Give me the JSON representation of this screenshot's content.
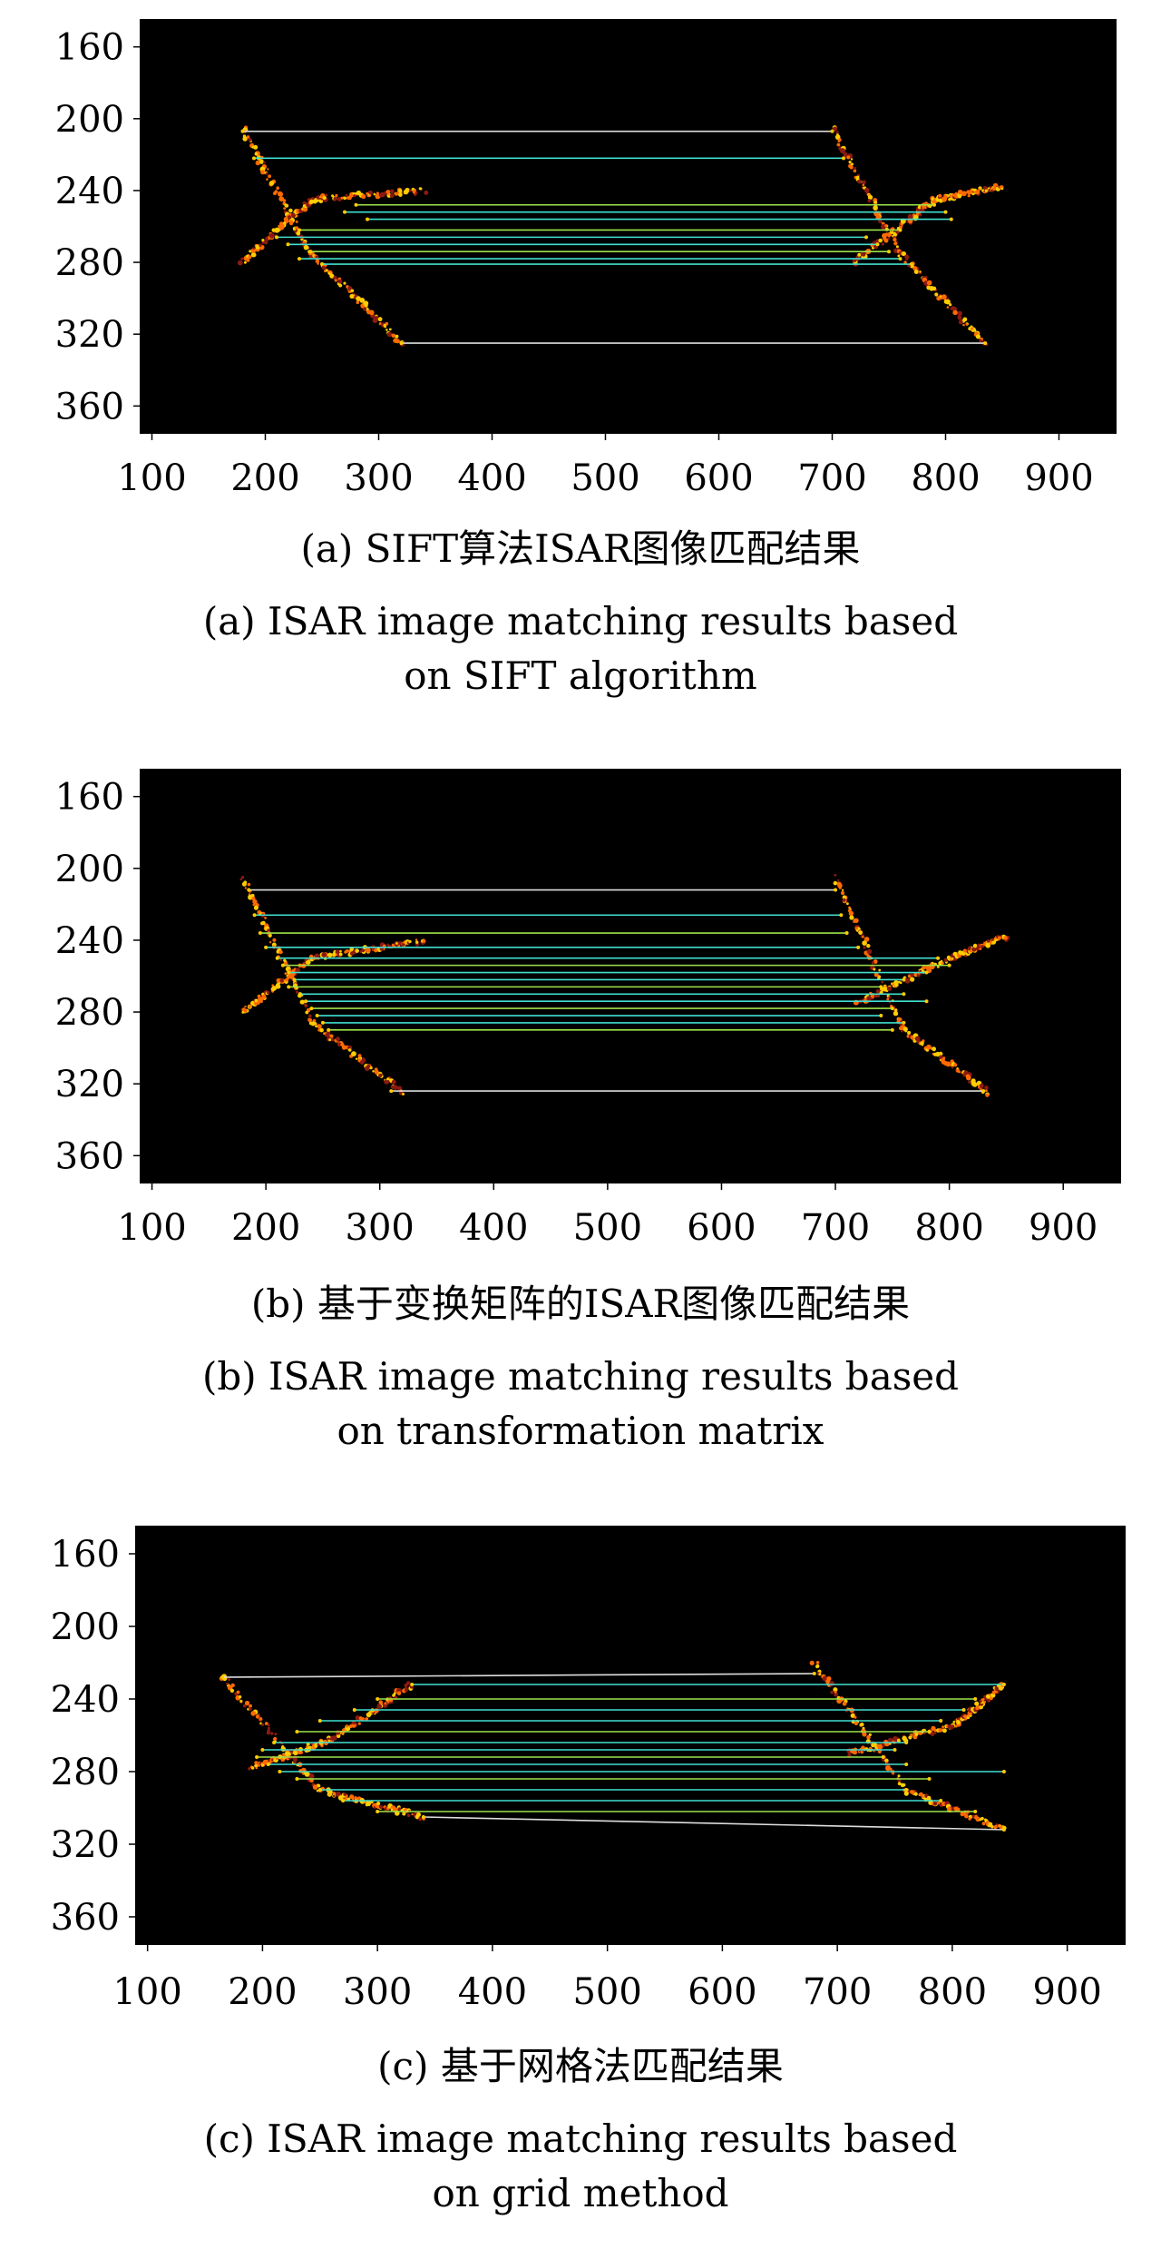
{
  "figures": [
    {
      "caption_cn": "(a) SIFT算法ISAR图像匹配结果",
      "caption_en_1": "(a) ISAR image matching results based",
      "caption_en_2": "on SIFT algorithm"
    },
    {
      "caption_cn": "(b) 基于变换矩阵的ISAR图像匹配结果",
      "caption_en_1": "(b) ISAR image matching results based",
      "caption_en_2": "on transformation matrix"
    },
    {
      "caption_cn": "(c) 基于网格法匹配结果",
      "caption_en_1": "(c) ISAR image matching results based",
      "caption_en_2": "on grid method"
    }
  ],
  "colors": {
    "background": "#000000",
    "scatter_hot": "#ffcc00",
    "scatter_warm": "#ff6a00",
    "scatter_dark": "#8b1a10",
    "match_line_cyan": "#40e0d0",
    "match_line_white": "#dddddd",
    "match_line_green": "#9ee34a"
  },
  "chart_data": [
    {
      "type": "scatter",
      "x_ticks": [
        "100",
        "200",
        "300",
        "400",
        "500",
        "600",
        "700",
        "800",
        "900"
      ],
      "y_ticks": [
        "160",
        "200",
        "240",
        "280",
        "320",
        "360"
      ],
      "xlim": [
        90,
        950
      ],
      "ylim": [
        145,
        375
      ],
      "y_reversed": true,
      "scatterers": [
        {
          "from": [
            180,
            205
          ],
          "to": [
            240,
            275
          ]
        },
        {
          "from": [
            240,
            275
          ],
          "to": [
            320,
            325
          ]
        },
        {
          "from": [
            180,
            280
          ],
          "to": [
            240,
            245
          ]
        },
        {
          "from": [
            240,
            245
          ],
          "to": [
            340,
            240
          ]
        },
        {
          "from": [
            700,
            205
          ],
          "to": [
            760,
            275
          ]
        },
        {
          "from": [
            760,
            275
          ],
          "to": [
            835,
            325
          ]
        },
        {
          "from": [
            720,
            280
          ],
          "to": [
            790,
            245
          ]
        },
        {
          "from": [
            790,
            245
          ],
          "to": [
            850,
            238
          ]
        }
      ],
      "matches": [
        {
          "x1": 180,
          "y1": 207,
          "x2": 700,
          "y2": 207
        },
        {
          "x1": 190,
          "y1": 222,
          "x2": 710,
          "y2": 222
        },
        {
          "x1": 280,
          "y1": 248,
          "x2": 790,
          "y2": 248
        },
        {
          "x1": 270,
          "y1": 252,
          "x2": 800,
          "y2": 252
        },
        {
          "x1": 290,
          "y1": 256,
          "x2": 805,
          "y2": 256
        },
        {
          "x1": 230,
          "y1": 262,
          "x2": 760,
          "y2": 262
        },
        {
          "x1": 210,
          "y1": 266,
          "x2": 730,
          "y2": 266
        },
        {
          "x1": 220,
          "y1": 270,
          "x2": 740,
          "y2": 270
        },
        {
          "x1": 240,
          "y1": 274,
          "x2": 750,
          "y2": 274
        },
        {
          "x1": 230,
          "y1": 278,
          "x2": 760,
          "y2": 278
        },
        {
          "x1": 250,
          "y1": 281,
          "x2": 770,
          "y2": 281
        },
        {
          "x1": 320,
          "y1": 325,
          "x2": 835,
          "y2": 325
        }
      ]
    },
    {
      "type": "scatter",
      "x_ticks": [
        "100",
        "200",
        "300",
        "400",
        "500",
        "600",
        "700",
        "800",
        "900"
      ],
      "y_ticks": [
        "160",
        "200",
        "240",
        "280",
        "320",
        "360"
      ],
      "xlim": [
        90,
        950
      ],
      "ylim": [
        145,
        375
      ],
      "y_reversed": true,
      "scatterers": [
        {
          "from": [
            180,
            205
          ],
          "to": [
            240,
            285
          ]
        },
        {
          "from": [
            240,
            285
          ],
          "to": [
            320,
            325
          ]
        },
        {
          "from": [
            180,
            280
          ],
          "to": [
            240,
            250
          ]
        },
        {
          "from": [
            240,
            250
          ],
          "to": [
            340,
            240
          ]
        },
        {
          "from": [
            700,
            205
          ],
          "to": [
            760,
            290
          ]
        },
        {
          "from": [
            760,
            290
          ],
          "to": [
            835,
            325
          ]
        },
        {
          "from": [
            720,
            275
          ],
          "to": [
            800,
            250
          ]
        },
        {
          "from": [
            800,
            250
          ],
          "to": [
            850,
            238
          ]
        }
      ],
      "matches": [
        {
          "x1": 185,
          "y1": 212,
          "x2": 700,
          "y2": 212
        },
        {
          "x1": 190,
          "y1": 226,
          "x2": 705,
          "y2": 226
        },
        {
          "x1": 195,
          "y1": 236,
          "x2": 710,
          "y2": 236
        },
        {
          "x1": 200,
          "y1": 244,
          "x2": 720,
          "y2": 244
        },
        {
          "x1": 210,
          "y1": 250,
          "x2": 790,
          "y2": 250
        },
        {
          "x1": 215,
          "y1": 254,
          "x2": 800,
          "y2": 254
        },
        {
          "x1": 220,
          "y1": 258,
          "x2": 780,
          "y2": 258
        },
        {
          "x1": 225,
          "y1": 262,
          "x2": 760,
          "y2": 262
        },
        {
          "x1": 220,
          "y1": 266,
          "x2": 740,
          "y2": 266
        },
        {
          "x1": 230,
          "y1": 270,
          "x2": 760,
          "y2": 270
        },
        {
          "x1": 235,
          "y1": 274,
          "x2": 780,
          "y2": 274
        },
        {
          "x1": 240,
          "y1": 278,
          "x2": 750,
          "y2": 278
        },
        {
          "x1": 245,
          "y1": 282,
          "x2": 740,
          "y2": 282
        },
        {
          "x1": 250,
          "y1": 286,
          "x2": 760,
          "y2": 286
        },
        {
          "x1": 255,
          "y1": 290,
          "x2": 750,
          "y2": 290
        },
        {
          "x1": 310,
          "y1": 324,
          "x2": 830,
          "y2": 324
        }
      ]
    },
    {
      "type": "scatter",
      "x_ticks": [
        "100",
        "200",
        "300",
        "400",
        "500",
        "600",
        "700",
        "800",
        "900"
      ],
      "y_ticks": [
        "160",
        "200",
        "240",
        "280",
        "320",
        "360"
      ],
      "xlim": [
        90,
        950
      ],
      "ylim": [
        145,
        375
      ],
      "y_reversed": true,
      "scatterers": [
        {
          "from": [
            165,
            228
          ],
          "to": [
            250,
            290
          ]
        },
        {
          "from": [
            250,
            290
          ],
          "to": [
            340,
            305
          ]
        },
        {
          "from": [
            190,
            278
          ],
          "to": [
            260,
            262
          ]
        },
        {
          "from": [
            260,
            262
          ],
          "to": [
            330,
            232
          ]
        },
        {
          "from": [
            680,
            220
          ],
          "to": [
            760,
            290
          ]
        },
        {
          "from": [
            760,
            290
          ],
          "to": [
            845,
            312
          ]
        },
        {
          "from": [
            710,
            270
          ],
          "to": [
            800,
            255
          ]
        },
        {
          "from": [
            800,
            255
          ],
          "to": [
            845,
            232
          ]
        }
      ],
      "matches": [
        {
          "x1": 165,
          "y1": 228,
          "x2": 680,
          "y2": 226
        },
        {
          "x1": 330,
          "y1": 232,
          "x2": 845,
          "y2": 232
        },
        {
          "x1": 300,
          "y1": 240,
          "x2": 820,
          "y2": 240
        },
        {
          "x1": 280,
          "y1": 246,
          "x2": 810,
          "y2": 246
        },
        {
          "x1": 250,
          "y1": 252,
          "x2": 790,
          "y2": 252
        },
        {
          "x1": 230,
          "y1": 258,
          "x2": 780,
          "y2": 258
        },
        {
          "x1": 210,
          "y1": 264,
          "x2": 760,
          "y2": 264
        },
        {
          "x1": 200,
          "y1": 268,
          "x2": 750,
          "y2": 268
        },
        {
          "x1": 195,
          "y1": 272,
          "x2": 740,
          "y2": 272
        },
        {
          "x1": 205,
          "y1": 276,
          "x2": 760,
          "y2": 276
        },
        {
          "x1": 215,
          "y1": 280,
          "x2": 845,
          "y2": 280
        },
        {
          "x1": 230,
          "y1": 284,
          "x2": 780,
          "y2": 284
        },
        {
          "x1": 250,
          "y1": 290,
          "x2": 760,
          "y2": 290
        },
        {
          "x1": 270,
          "y1": 296,
          "x2": 790,
          "y2": 296
        },
        {
          "x1": 300,
          "y1": 302,
          "x2": 820,
          "y2": 302
        },
        {
          "x1": 340,
          "y1": 305,
          "x2": 845,
          "y2": 312
        }
      ]
    }
  ]
}
